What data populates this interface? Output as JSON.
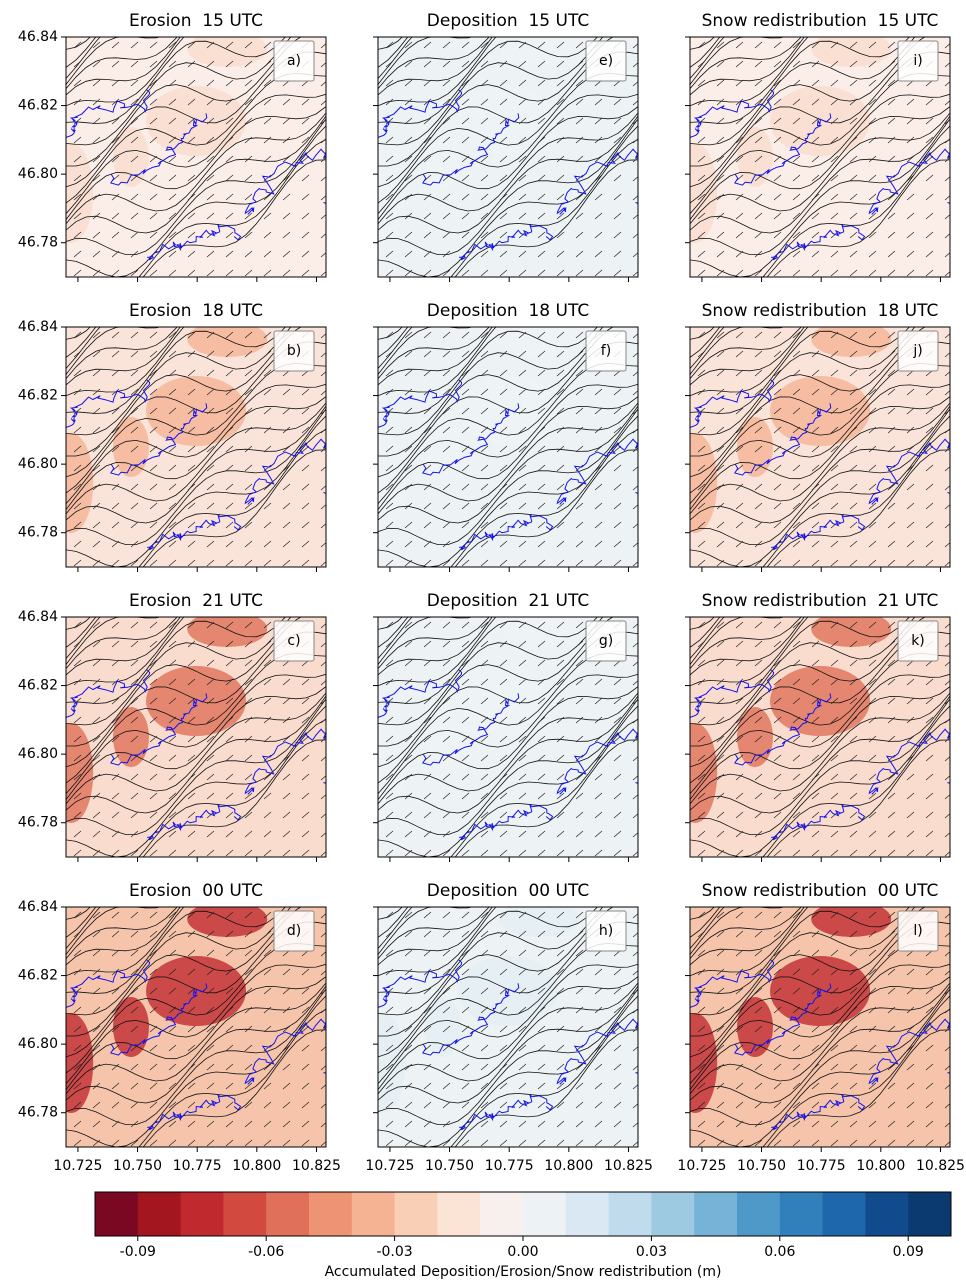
{
  "chart_data": [
    {
      "type": "map",
      "title": "Erosion  15 UTC",
      "panel_label": "a)",
      "fill": "#fbeee8",
      "accent": "#f9dccd"
    },
    {
      "type": "map",
      "title": "Deposition  15 UTC",
      "panel_label": "e)",
      "fill": "#edf2f5",
      "accent": "#edf2f5"
    },
    {
      "type": "map",
      "title": "Snow redistribution  15 UTC",
      "panel_label": "i)",
      "fill": "#fbeee8",
      "accent": "#f9dccd"
    },
    {
      "type": "map",
      "title": "Erosion  18 UTC",
      "panel_label": "b)",
      "fill": "#fae4d9",
      "accent": "#f5b394"
    },
    {
      "type": "map",
      "title": "Deposition  18 UTC",
      "panel_label": "f)",
      "fill": "#edf2f5",
      "accent": "#edf2f5"
    },
    {
      "type": "map",
      "title": "Snow redistribution  18 UTC",
      "panel_label": "j)",
      "fill": "#fae4d9",
      "accent": "#f5b394"
    },
    {
      "type": "map",
      "title": "Erosion  21 UTC",
      "panel_label": "c)",
      "fill": "#f9dccd",
      "accent": "#e0705a"
    },
    {
      "type": "map",
      "title": "Deposition  21 UTC",
      "panel_label": "g)",
      "fill": "#edf2f5",
      "accent": "#edf2f5"
    },
    {
      "type": "map",
      "title": "Snow redistribution  21 UTC",
      "panel_label": "k)",
      "fill": "#f9dccd",
      "accent": "#e0705a"
    },
    {
      "type": "map",
      "title": "Erosion  00 UTC",
      "panel_label": "d)",
      "fill": "#f5c4ab",
      "accent": "#c02a2f"
    },
    {
      "type": "map",
      "title": "Deposition  00 UTC",
      "panel_label": "h)",
      "fill": "#edf2f5",
      "accent": "#e3edf3"
    },
    {
      "type": "map",
      "title": "Snow redistribution  00 UTC",
      "panel_label": "l)",
      "fill": "#f5c4ab",
      "accent": "#c02a2f"
    }
  ],
  "axes": {
    "xlim": [
      10.72,
      10.829
    ],
    "ylim": [
      46.77,
      46.84
    ],
    "xticks": [
      10.725,
      {
        "value": 10.75,
        "label": "10.750"
      },
      10.775,
      {
        "value": 10.8,
        "label": "10.800"
      },
      10.825
    ],
    "yticks": [
      46.84,
      46.82,
      {
        "value": 46.8,
        "label": "46.80"
      },
      46.78
    ]
  },
  "colorbar": {
    "levels": [
      -0.1,
      -0.09,
      -0.08,
      -0.07,
      -0.06,
      -0.05,
      -0.04,
      -0.03,
      -0.02,
      -0.01,
      0,
      0.01,
      0.02,
      0.03,
      0.04,
      0.05,
      0.06,
      0.07,
      0.08,
      0.09,
      0.1
    ],
    "colors": [
      "#7b0822",
      "#a3151f",
      "#c02a2f",
      "#d2493f",
      "#e0705a",
      "#ee9373",
      "#f5b394",
      "#f9cfb6",
      "#fbe3d6",
      "#f8f0ed",
      "#edf2f5",
      "#d9e8f2",
      "#c0dbeb",
      "#9ecae1",
      "#76b3d6",
      "#4e99c7",
      "#3180bb",
      "#1f67ac",
      "#114b8e",
      "#0b3a70"
    ],
    "ticks": [
      -0.09,
      -0.06,
      -0.03,
      {
        "value": 0,
        "label": "0.00"
      },
      0.03,
      0.06,
      0.09
    ],
    "label": "Accumulated Deposition/Erosion/Snow redistribution (m)"
  }
}
